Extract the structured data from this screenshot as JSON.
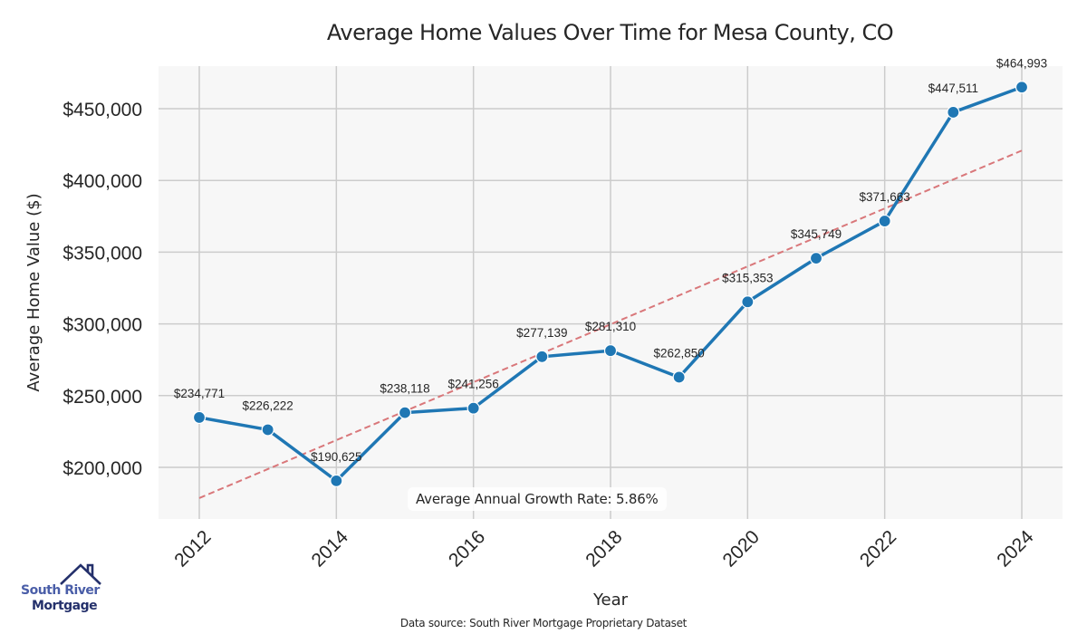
{
  "chart_data": {
    "type": "line",
    "title": "Average Home Values Over Time for Mesa County, CO",
    "xlabel": "Year",
    "ylabel": "Average Home Value ($)",
    "x": [
      2012,
      2013,
      2014,
      2015,
      2016,
      2017,
      2018,
      2019,
      2020,
      2021,
      2022,
      2023,
      2024
    ],
    "series": [
      {
        "name": "Average Home Value",
        "color": "#1f77b4",
        "values": [
          234771,
          226222,
          190625,
          238118,
          241256,
          277139,
          281310,
          262850,
          315353,
          345749,
          371663,
          447511,
          464993
        ],
        "data_labels": [
          "$234,771",
          "$226,222",
          "$190,625",
          "$238,118",
          "$241,256",
          "$277,139",
          "$281,310",
          "$262,850",
          "$315,353",
          "$345,749",
          "$371,663",
          "$447,511",
          "$464,993"
        ]
      }
    ],
    "trend_line": {
      "name": "Linear trend",
      "color": "#d9777a",
      "style": "dashed",
      "x": [
        2012,
        2024
      ],
      "values": [
        178600,
        420800
      ]
    },
    "x_ticks": [
      2012,
      2014,
      2016,
      2018,
      2020,
      2022,
      2024
    ],
    "x_tick_labels": [
      "2012",
      "2014",
      "2016",
      "2018",
      "2020",
      "2022",
      "2024"
    ],
    "y_ticks": [
      200000,
      250000,
      300000,
      350000,
      400000,
      450000
    ],
    "y_tick_labels": [
      "$200,000",
      "$250,000",
      "$300,000",
      "$350,000",
      "$400,000",
      "$450,000"
    ],
    "xlim": [
      2011.4,
      2024.6
    ],
    "ylim": [
      165000,
      480000
    ],
    "grid": true,
    "plot_background": "#f7f7f7",
    "grid_color": "#cccccc",
    "annotation": "Average Annual Growth Rate: 5.86%"
  },
  "footer": {
    "source": "Data source: South River Mortgage Proprietary Dataset"
  },
  "logo": {
    "line1": "South River",
    "line2": "Mortgage",
    "icon": "house-roof-icon"
  }
}
